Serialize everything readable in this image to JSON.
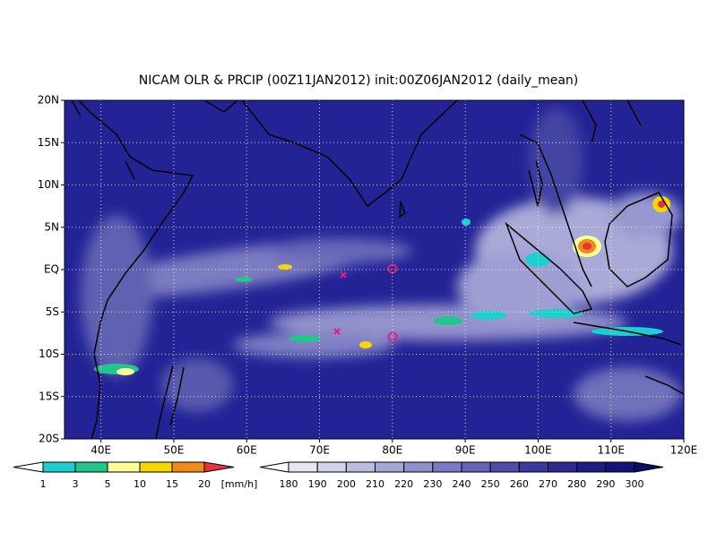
{
  "map": {
    "title": "NICAM OLR & PRCIP (00Z11JAN2012) init:00Z06JAN2012 (daily_mean)",
    "xlim": [
      35,
      120
    ],
    "ylim": [
      -20,
      20
    ],
    "xticks": [
      {
        "value": 40,
        "label": "40E"
      },
      {
        "value": 50,
        "label": "50E"
      },
      {
        "value": 60,
        "label": "60E"
      },
      {
        "value": 70,
        "label": "70E"
      },
      {
        "value": 80,
        "label": "80E"
      },
      {
        "value": 90,
        "label": "90E"
      },
      {
        "value": 100,
        "label": "100E"
      },
      {
        "value": 110,
        "label": "110E"
      },
      {
        "value": 120,
        "label": "120E"
      }
    ],
    "yticks": [
      {
        "value": 20,
        "label": "20N"
      },
      {
        "value": 15,
        "label": "15N"
      },
      {
        "value": 10,
        "label": "10N"
      },
      {
        "value": 5,
        "label": "5N"
      },
      {
        "value": 0,
        "label": "EQ"
      },
      {
        "value": -5,
        "label": "5S"
      },
      {
        "value": -10,
        "label": "10S"
      },
      {
        "value": -15,
        "label": "15S"
      },
      {
        "value": -20,
        "label": "20S"
      }
    ],
    "grid": true,
    "precip_colorbar": {
      "levels": [
        1,
        3,
        5,
        10,
        15,
        20
      ],
      "colors": [
        "#ffffff",
        "#1ecfcf",
        "#22c58a",
        "#ffff9a",
        "#f5d800",
        "#f28a1a",
        "#e8333a"
      ],
      "units": "[mm/h]"
    },
    "olr_colorbar": {
      "levels": [
        180,
        190,
        200,
        210,
        220,
        230,
        240,
        250,
        260,
        270,
        280,
        290,
        300
      ],
      "colors": [
        "#ffffff",
        "#e6e6f2",
        "#d2d2ea",
        "#bcbce0",
        "#a6a6d6",
        "#9090cc",
        "#7a7ac2",
        "#6464b6",
        "#4e4eaa",
        "#3a3a9e",
        "#2a2a90",
        "#1e1e82",
        "#141478",
        "#0c0c68"
      ]
    }
  }
}
